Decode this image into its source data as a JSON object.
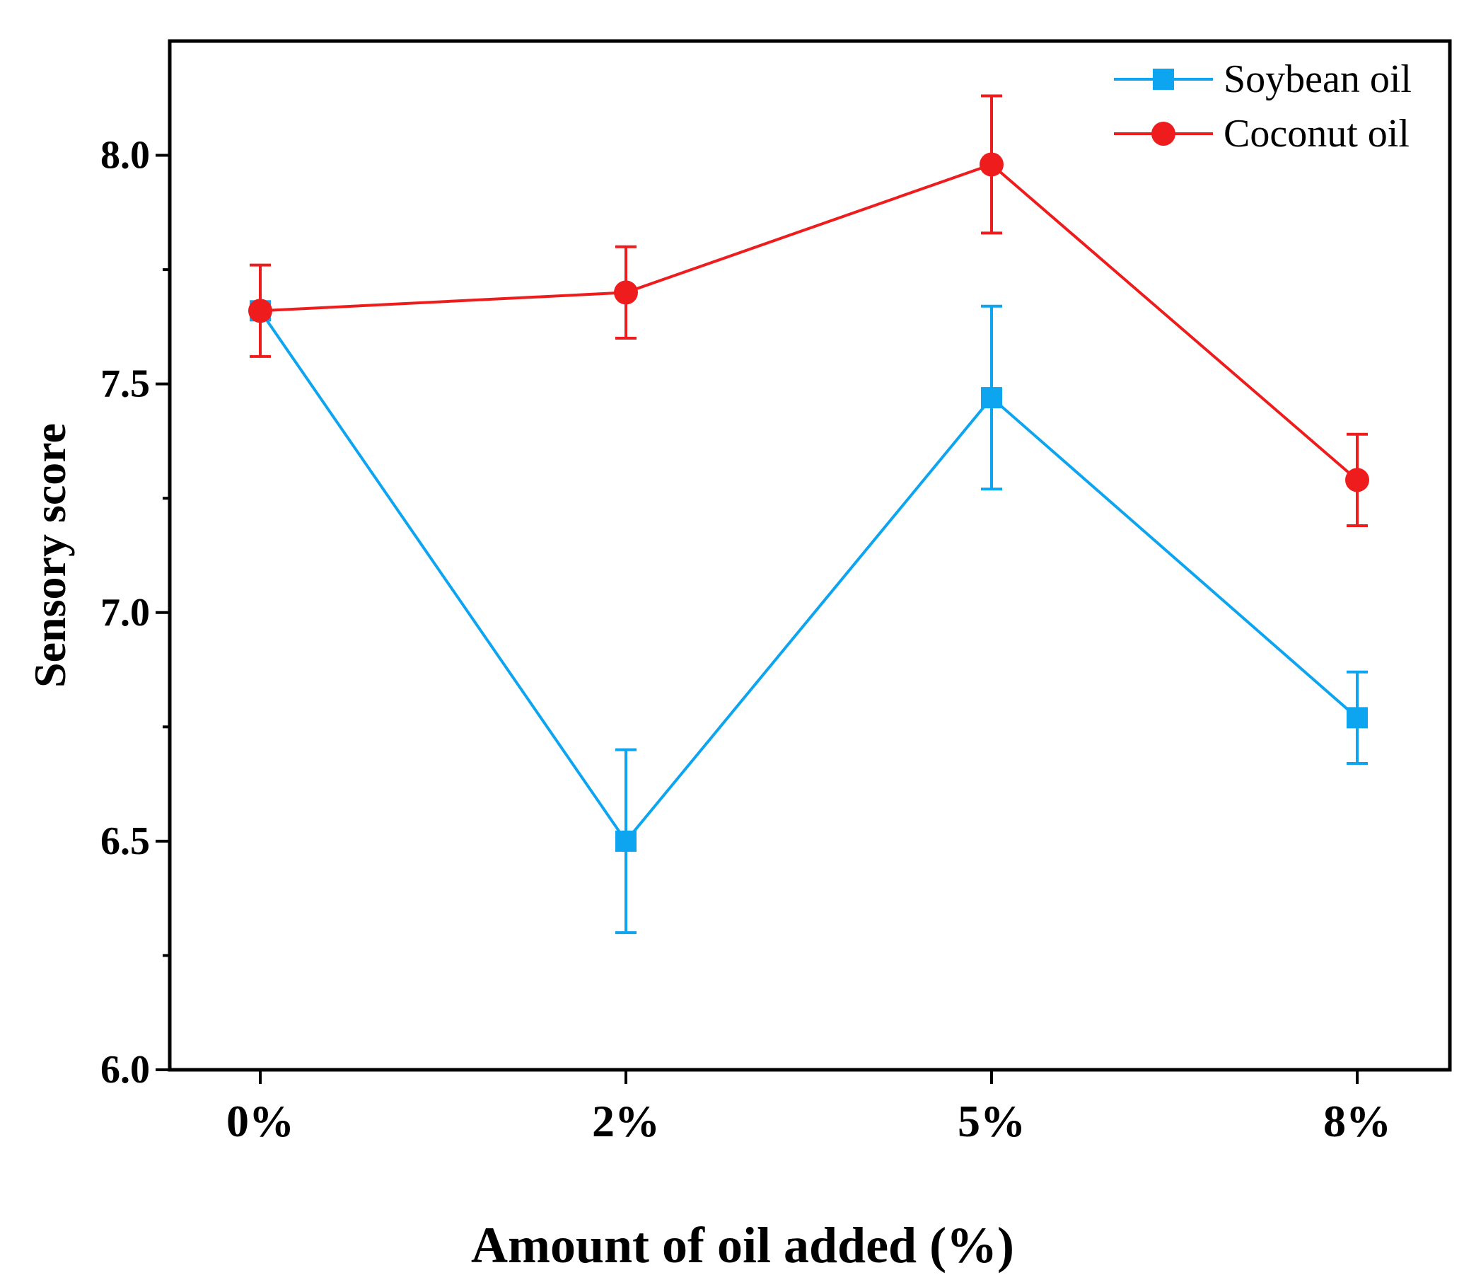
{
  "chart_data": {
    "type": "line",
    "title": "",
    "xlabel": "Amount of oil added (%)",
    "ylabel": "Sensory score",
    "categories": [
      "0%",
      "2%",
      "5%",
      "8%"
    ],
    "ylim": [
      6.0,
      8.25
    ],
    "yticks": [
      6.0,
      6.5,
      7.0,
      7.5,
      8.0
    ],
    "yticks_labels": [
      "6.0",
      "6.5",
      "7.0",
      "7.5",
      "8.0"
    ],
    "ytick_minor": [
      6.25,
      6.75,
      7.25,
      7.75
    ],
    "grid": false,
    "legend_position": "top-right",
    "series": [
      {
        "name": "Soybean oil",
        "color": "#0ea5f0",
        "marker": "square",
        "values": [
          7.66,
          6.5,
          7.47,
          6.77
        ],
        "errors": [
          0.0,
          0.2,
          0.2,
          0.1
        ]
      },
      {
        "name": "Coconut oil",
        "color": "#ee1c1c",
        "marker": "circle",
        "values": [
          7.66,
          7.7,
          7.98,
          7.29
        ],
        "errors": [
          0.1,
          0.1,
          0.15,
          0.1
        ]
      }
    ]
  }
}
